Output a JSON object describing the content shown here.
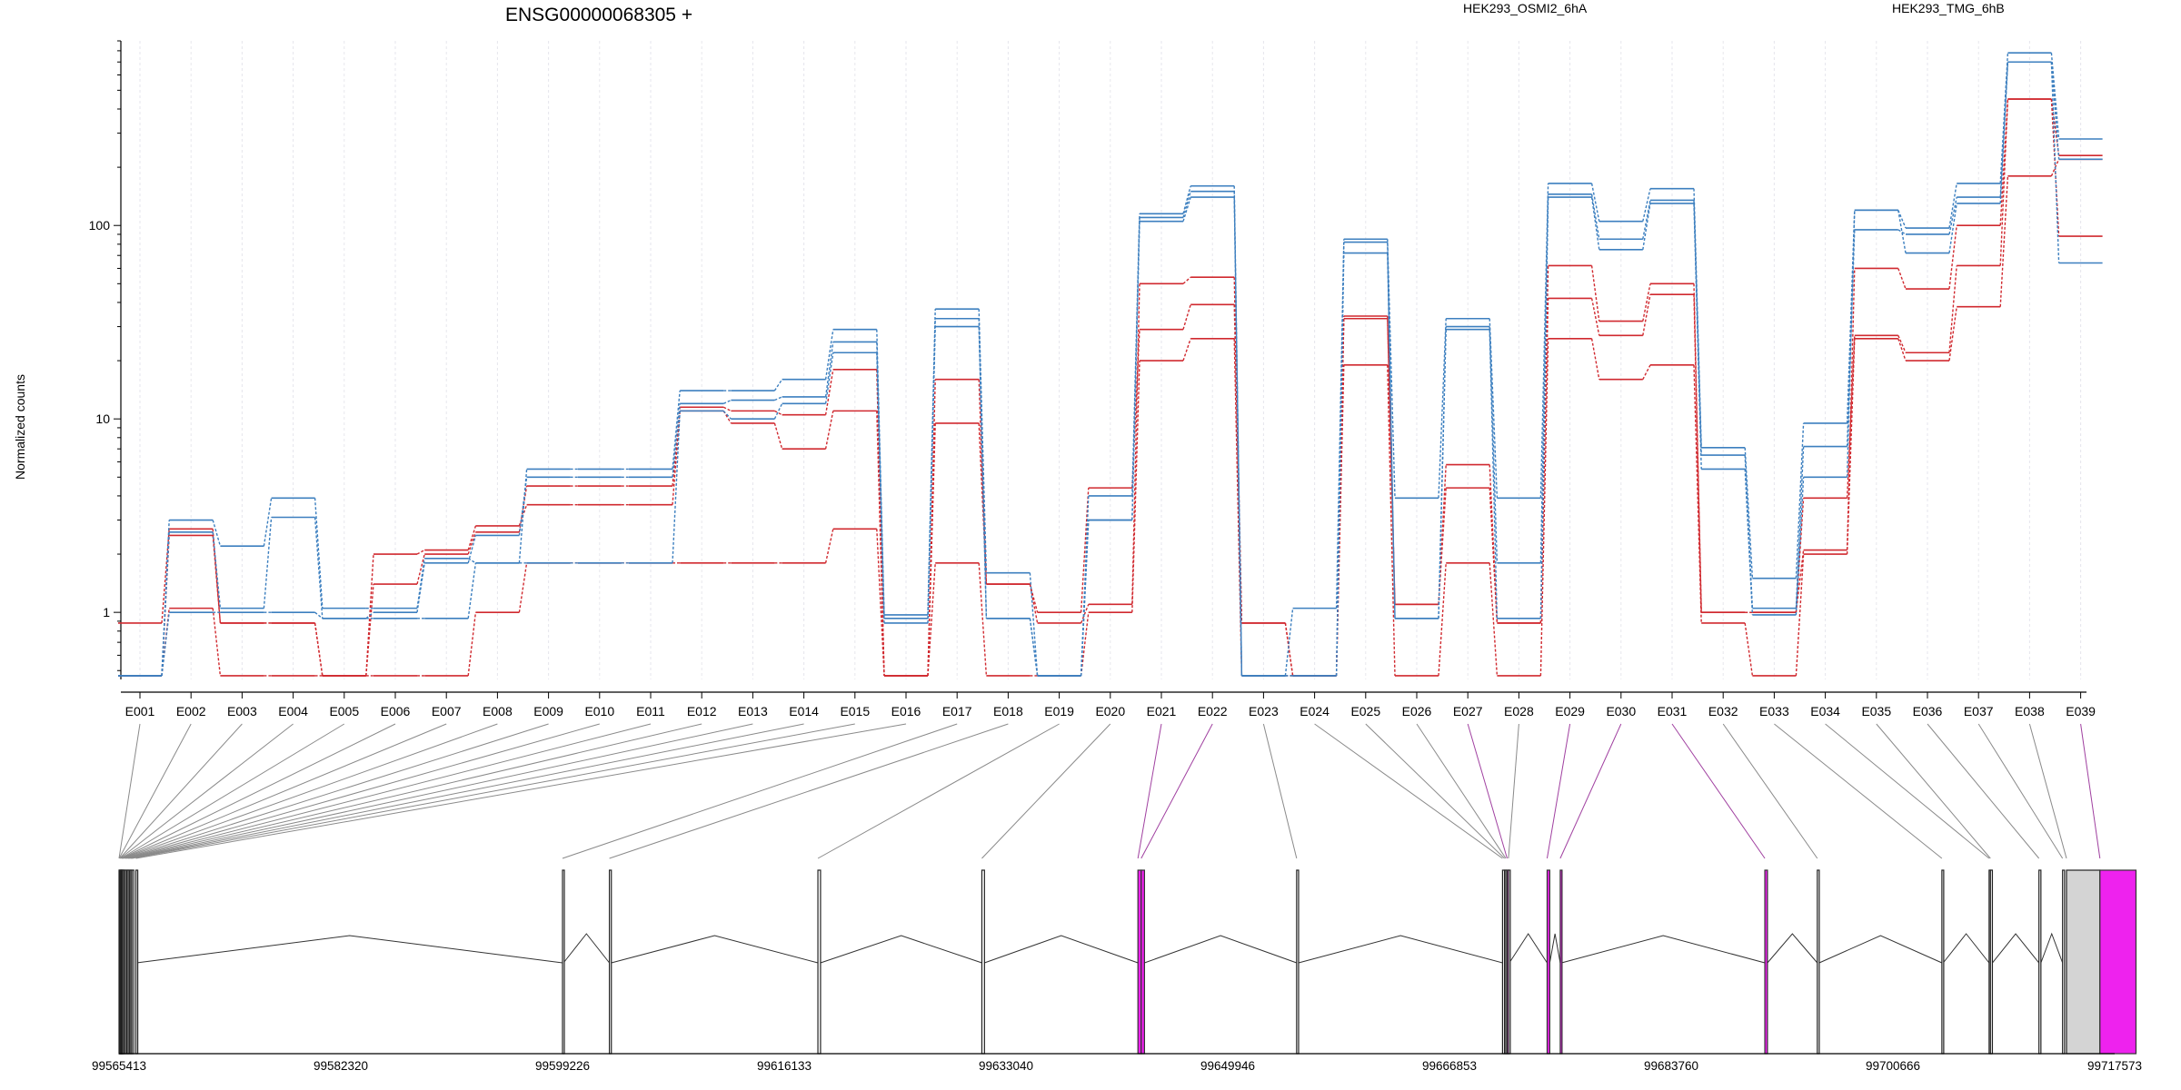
{
  "chart_data": {
    "type": "line",
    "title": "ENSG00000068305 +",
    "ylabel": "Normalized counts",
    "yscale": "log",
    "ylim": [
      0.45,
      900
    ],
    "yticks": [
      1,
      10,
      100
    ],
    "ytick_labels": [
      "1",
      "10",
      "100"
    ],
    "legend_position": "top",
    "legend": [
      {
        "label": "HEK293_OSMI2_6hA",
        "color": "#d0292f"
      },
      {
        "label": "HEK293_TMG_6hB",
        "color": "#3c7fbf"
      }
    ],
    "categories": [
      "E001",
      "E002",
      "E003",
      "E004",
      "E005",
      "E006",
      "E007",
      "E008",
      "E009",
      "E010",
      "E011",
      "E012",
      "E013",
      "E014",
      "E015",
      "E016",
      "E017",
      "E018",
      "E019",
      "E020",
      "E021",
      "E022",
      "E023",
      "E024",
      "E025",
      "E026",
      "E027",
      "E028",
      "E029",
      "E030",
      "E031",
      "E032",
      "E033",
      "E034",
      "E035",
      "E036",
      "E037",
      "E038",
      "E039"
    ],
    "series": [
      {
        "group": "HEK293_OSMI2_6hA",
        "color": "#d0292f",
        "values": [
          0.88,
          2.7,
          0.88,
          0.88,
          0.47,
          1.4,
          2.0,
          2.6,
          4.5,
          4.5,
          4.5,
          11.5,
          11.0,
          10.5,
          18,
          0.47,
          16,
          1.4,
          0.88,
          1.1,
          50,
          54,
          0.88,
          0.47,
          34,
          1.1,
          5.8,
          0.88,
          62,
          32,
          50,
          1.0,
          1.0,
          2.1,
          60,
          47,
          100,
          450,
          230
        ]
      },
      {
        "group": "HEK293_OSMI2_6hA",
        "color": "#d0292f",
        "values": [
          0.47,
          2.5,
          0.88,
          0.88,
          0.47,
          2.0,
          2.1,
          2.8,
          3.6,
          3.6,
          3.6,
          11,
          9.5,
          7.0,
          11,
          0.47,
          9.5,
          1.4,
          1.0,
          4.4,
          29,
          39,
          0.88,
          0.47,
          33,
          1.1,
          4.4,
          0.88,
          42,
          27,
          44,
          1.0,
          1.0,
          3.9,
          27,
          22,
          62,
          450,
          88
        ]
      },
      {
        "group": "HEK293_OSMI2_6hA",
        "color": "#d0292f",
        "values": [
          0.47,
          1.05,
          0.47,
          0.47,
          0.47,
          0.47,
          0.47,
          1.0,
          1.8,
          1.8,
          1.8,
          1.8,
          1.8,
          1.8,
          2.7,
          0.47,
          1.8,
          0.47,
          0.47,
          1.0,
          20,
          26,
          0.47,
          0.47,
          19,
          0.47,
          1.8,
          0.47,
          26,
          16,
          19,
          0.88,
          0.47,
          2.0,
          26,
          20,
          38,
          180,
          220
        ]
      },
      {
        "group": "HEK293_TMG_6hB",
        "color": "#3c7fbf",
        "values": [
          0.47,
          3.0,
          2.2,
          3.9,
          1.05,
          1.05,
          1.9,
          1.8,
          5.5,
          5.5,
          5.5,
          14,
          14,
          16,
          29,
          0.97,
          37,
          1.6,
          0.47,
          4.0,
          115,
          160,
          0.47,
          1.05,
          85,
          3.9,
          33,
          3.9,
          165,
          105,
          155,
          7.1,
          1.5,
          9.5,
          120,
          97,
          165,
          780,
          280
        ]
      },
      {
        "group": "HEK293_TMG_6hB",
        "color": "#3c7fbf",
        "values": [
          0.47,
          2.6,
          1.05,
          3.1,
          0.93,
          1.0,
          1.8,
          2.5,
          5.0,
          5.0,
          5.0,
          12,
          12.5,
          13,
          25,
          0.93,
          33,
          0.93,
          0.47,
          3.0,
          110,
          150,
          0.47,
          0.47,
          82,
          0.93,
          30,
          1.8,
          145,
          85,
          135,
          6.5,
          1.05,
          7.2,
          95,
          90,
          140,
          700,
          220
        ]
      },
      {
        "group": "HEK293_TMG_6hB",
        "color": "#3c7fbf",
        "values": [
          0.47,
          1.0,
          1.0,
          1.0,
          0.93,
          0.93,
          0.93,
          1.8,
          1.8,
          1.8,
          1.8,
          11,
          10,
          12,
          22,
          0.88,
          30,
          0.93,
          0.47,
          3.0,
          105,
          140,
          0.47,
          0.47,
          72,
          0.93,
          29,
          0.93,
          140,
          75,
          130,
          5.5,
          0.97,
          5.0,
          120,
          72,
          130,
          700,
          64
        ]
      }
    ],
    "genomic_axis": {
      "tick_labels": [
        "99565413",
        "99582320",
        "99599226",
        "99616133",
        "99633040",
        "99649946",
        "99666853",
        "99683760",
        "99700666",
        "99717573"
      ],
      "range": [
        99565413,
        99717573
      ]
    },
    "exons": [
      {
        "id": "E001",
        "start": 99565413,
        "end": 99565420,
        "diff": false
      },
      {
        "id": "E002",
        "start": 99565420,
        "end": 99565470,
        "diff": false
      },
      {
        "id": "E003",
        "start": 99565470,
        "end": 99565500,
        "diff": false
      },
      {
        "id": "E004",
        "start": 99565500,
        "end": 99565560,
        "diff": false
      },
      {
        "id": "E005",
        "start": 99565560,
        "end": 99565600,
        "diff": false
      },
      {
        "id": "E006",
        "start": 99565600,
        "end": 99565650,
        "diff": false
      },
      {
        "id": "E007",
        "start": 99565650,
        "end": 99565700,
        "diff": false
      },
      {
        "id": "E008",
        "start": 99565700,
        "end": 99565760,
        "diff": false
      },
      {
        "id": "E009",
        "start": 99565800,
        "end": 99565850,
        "diff": false
      },
      {
        "id": "E010",
        "start": 99565900,
        "end": 99565950,
        "diff": false
      },
      {
        "id": "E011",
        "start": 99566000,
        "end": 99566050,
        "diff": false
      },
      {
        "id": "E012",
        "start": 99566100,
        "end": 99566150,
        "diff": false
      },
      {
        "id": "E013",
        "start": 99566200,
        "end": 99566250,
        "diff": false
      },
      {
        "id": "E014",
        "start": 99566300,
        "end": 99566350,
        "diff": false
      },
      {
        "id": "E015",
        "start": 99566400,
        "end": 99566450,
        "diff": false
      },
      {
        "id": "E016",
        "start": 99566700,
        "end": 99566750,
        "diff": false
      },
      {
        "id": "E017",
        "start": 99599226,
        "end": 99599300,
        "diff": false
      },
      {
        "id": "E018",
        "start": 99602800,
        "end": 99602950,
        "diff": false
      },
      {
        "id": "E019",
        "start": 99618700,
        "end": 99618900,
        "diff": false
      },
      {
        "id": "E020",
        "start": 99631200,
        "end": 99631400,
        "diff": false
      },
      {
        "id": "E021",
        "start": 99643100,
        "end": 99643350,
        "diff": true
      },
      {
        "id": "E022",
        "start": 99643350,
        "end": 99643600,
        "diff": true
      },
      {
        "id": "E023",
        "start": 99655200,
        "end": 99655350,
        "diff": false
      },
      {
        "id": "E024",
        "start": 99670900,
        "end": 99671050,
        "diff": false
      },
      {
        "id": "E025",
        "start": 99671050,
        "end": 99671150,
        "diff": false
      },
      {
        "id": "E026",
        "start": 99671150,
        "end": 99671250,
        "diff": false
      },
      {
        "id": "E027",
        "start": 99671250,
        "end": 99671350,
        "diff": true
      },
      {
        "id": "E028",
        "start": 99671350,
        "end": 99671420,
        "diff": false
      },
      {
        "id": "E029",
        "start": 99674300,
        "end": 99674500,
        "diff": true
      },
      {
        "id": "E030",
        "start": 99675300,
        "end": 99675400,
        "diff": true
      },
      {
        "id": "E031",
        "start": 99690900,
        "end": 99691100,
        "diff": true
      },
      {
        "id": "E032",
        "start": 99694900,
        "end": 99695050,
        "diff": false
      },
      {
        "id": "E033",
        "start": 99704400,
        "end": 99704500,
        "diff": false
      },
      {
        "id": "E034",
        "start": 99708000,
        "end": 99708100,
        "diff": false
      },
      {
        "id": "E035",
        "start": 99708100,
        "end": 99708250,
        "diff": false
      },
      {
        "id": "E036",
        "start": 99711800,
        "end": 99711950,
        "diff": false
      },
      {
        "id": "E037",
        "start": 99713600,
        "end": 99713750,
        "diff": false
      },
      {
        "id": "E038",
        "start": 99713900,
        "end": 99716450,
        "diff": false
      },
      {
        "id": "E039",
        "start": 99716450,
        "end": 99719200,
        "diff": true
      }
    ],
    "colors": {
      "series_a": "#d0292f",
      "series_b": "#3c7fbf",
      "diff_exon": "#ee22ee",
      "diff_line": "#a040a0",
      "grid": "#e6e6ec",
      "last_block_gray": "#d4d4d4"
    }
  }
}
